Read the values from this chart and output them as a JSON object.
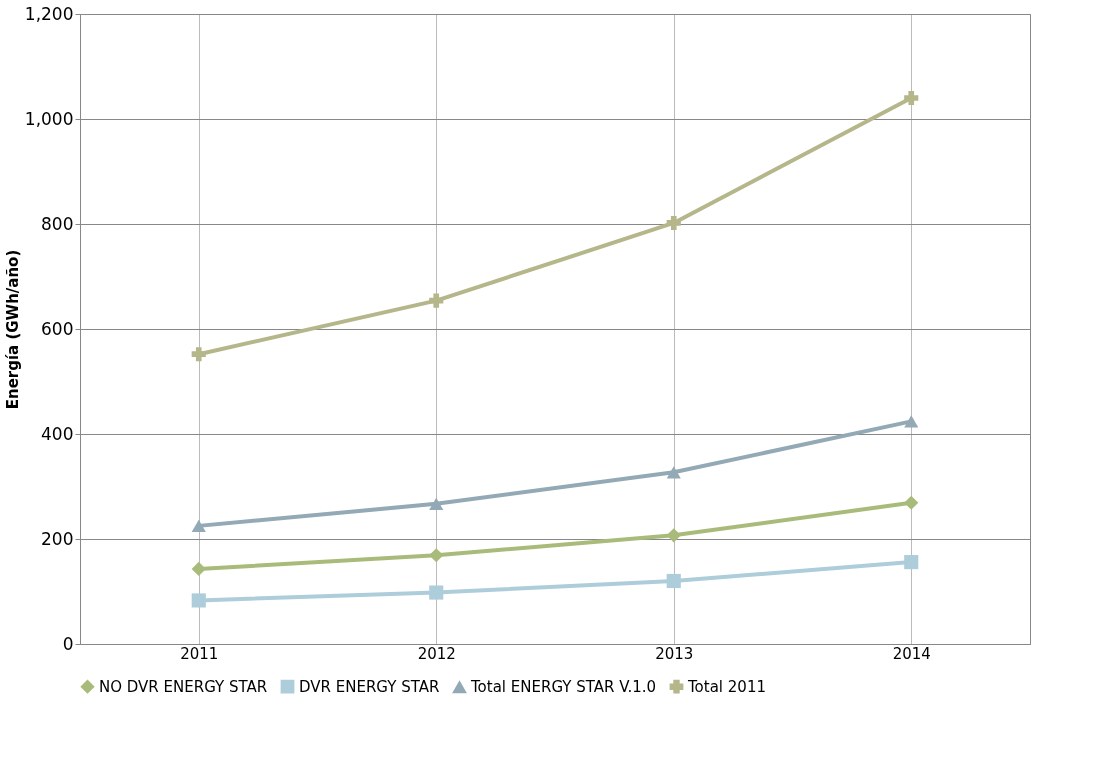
{
  "chart_data": {
    "type": "line",
    "ylabel": "Energía (GWh/año)",
    "categories": [
      "2011",
      "2012",
      "2013",
      "2014"
    ],
    "series": [
      {
        "name": "NO DVR ENERGY STAR",
        "color": "#a9bb7a",
        "marker": "diamond",
        "values": [
          143,
          169,
          207,
          269
        ]
      },
      {
        "name": "DVR ENERGY STAR",
        "color": "#aecddb",
        "marker": "square",
        "values": [
          83,
          98,
          120,
          156
        ]
      },
      {
        "name": "Total ENERGY STAR V.1.0",
        "color": "#93a9b5",
        "marker": "triangle",
        "values": [
          225,
          267,
          327,
          424
        ]
      },
      {
        "name": "Total 2011",
        "color": "#b5b68a",
        "marker": "cross",
        "values": [
          552,
          654,
          802,
          1040
        ]
      }
    ],
    "ylim": [
      0,
      1200
    ],
    "yticks": [
      0,
      200,
      400,
      600,
      800,
      {
        "value": 1000,
        "label": "1,000"
      },
      {
        "value": 1200,
        "label": "1,200"
      }
    ],
    "grid": true,
    "legend": "bottom",
    "line_style": "solid"
  }
}
